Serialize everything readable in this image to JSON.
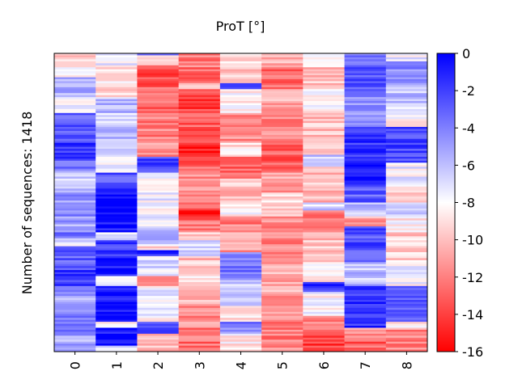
{
  "chart_data": {
    "type": "heatmap",
    "title": "ProT [°]",
    "ylabel": "Number of sequences: 1418",
    "xlabel": "",
    "x_categories": [
      "0",
      "1",
      "2",
      "3",
      "4",
      "5",
      "6",
      "7",
      "8"
    ],
    "n_rows": 1418,
    "colorbar": {
      "ticks": [
        "0",
        "-2",
        "-4",
        "-6",
        "-8",
        "-10",
        "-12",
        "-14",
        "-16"
      ],
      "range": [
        -16,
        0
      ],
      "colormap": [
        "#ff0000",
        "#ffffff",
        "#0000ff"
      ]
    },
    "columns": [
      {
        "category": "0",
        "bands": [
          [
            0.0,
            -10.0
          ],
          [
            0.04,
            -8.5
          ],
          [
            0.08,
            -5.5
          ],
          [
            0.15,
            -8.0
          ],
          [
            0.2,
            -3.0
          ],
          [
            0.3,
            -1.5
          ],
          [
            0.36,
            -4.0
          ],
          [
            0.4,
            -6.0
          ],
          [
            0.47,
            -4.5
          ],
          [
            0.55,
            -5.0
          ],
          [
            0.6,
            -3.5
          ],
          [
            0.62,
            -7.5
          ],
          [
            0.65,
            -3.0
          ],
          [
            0.73,
            -1.5
          ],
          [
            0.78,
            -5.0
          ],
          [
            0.88,
            -3.5
          ],
          [
            0.95,
            -5.5
          ]
        ]
      },
      {
        "category": "1",
        "bands": [
          [
            0.0,
            -7.5
          ],
          [
            0.04,
            -8.5
          ],
          [
            0.1,
            -9.5
          ],
          [
            0.15,
            -6.0
          ],
          [
            0.2,
            -7.0
          ],
          [
            0.25,
            -5.5
          ],
          [
            0.3,
            -6.5
          ],
          [
            0.35,
            -8.0
          ],
          [
            0.4,
            -2.5
          ],
          [
            0.42,
            -3.5
          ],
          [
            0.45,
            -0.5
          ],
          [
            0.6,
            -7.5
          ],
          [
            0.63,
            -2.0
          ],
          [
            0.68,
            -1.0
          ],
          [
            0.75,
            -7.0
          ],
          [
            0.78,
            -0.5
          ],
          [
            0.9,
            -8.0
          ],
          [
            0.92,
            -0.5
          ],
          [
            0.98,
            -7.5
          ]
        ]
      },
      {
        "category": "2",
        "bands": [
          [
            0.0,
            -4.5
          ],
          [
            0.01,
            -9.5
          ],
          [
            0.04,
            -13.5
          ],
          [
            0.1,
            -13.0
          ],
          [
            0.2,
            -12.0
          ],
          [
            0.3,
            -11.5
          ],
          [
            0.35,
            -2.0
          ],
          [
            0.4,
            -7.5
          ],
          [
            0.59,
            -4.5
          ],
          [
            0.64,
            -9.0
          ],
          [
            0.66,
            -1.5
          ],
          [
            0.68,
            -7.0
          ],
          [
            0.75,
            -12.0
          ],
          [
            0.78,
            -7.5
          ],
          [
            0.88,
            -9.0
          ],
          [
            0.9,
            -3.0
          ],
          [
            0.94,
            -10.0
          ]
        ]
      },
      {
        "category": "3",
        "bands": [
          [
            0.0,
            -12.0
          ],
          [
            0.05,
            -13.0
          ],
          [
            0.1,
            -10.0
          ],
          [
            0.12,
            -14.0
          ],
          [
            0.2,
            -13.0
          ],
          [
            0.3,
            -15.0
          ],
          [
            0.34,
            -13.0
          ],
          [
            0.4,
            -11.5
          ],
          [
            0.52,
            -15.0
          ],
          [
            0.56,
            -12.0
          ],
          [
            0.6,
            -9.5
          ],
          [
            0.63,
            -7.0
          ],
          [
            0.68,
            -10.0
          ],
          [
            0.72,
            -9.0
          ],
          [
            0.78,
            -10.5
          ],
          [
            0.85,
            -11.5
          ],
          [
            0.92,
            -12.5
          ]
        ]
      },
      {
        "category": "4",
        "bands": [
          [
            0.0,
            -9.5
          ],
          [
            0.05,
            -10.0
          ],
          [
            0.1,
            -3.0
          ],
          [
            0.12,
            -8.5
          ],
          [
            0.2,
            -11.5
          ],
          [
            0.3,
            -9.0
          ],
          [
            0.35,
            -13.0
          ],
          [
            0.42,
            -10.0
          ],
          [
            0.5,
            -8.5
          ],
          [
            0.55,
            -12.0
          ],
          [
            0.6,
            -11.0
          ],
          [
            0.67,
            -3.5
          ],
          [
            0.76,
            -6.0
          ],
          [
            0.85,
            -9.0
          ],
          [
            0.9,
            -4.0
          ],
          [
            0.94,
            -8.5
          ]
        ]
      },
      {
        "category": "5",
        "bands": [
          [
            0.0,
            -10.5
          ],
          [
            0.05,
            -12.5
          ],
          [
            0.12,
            -10.5
          ],
          [
            0.2,
            -11.5
          ],
          [
            0.3,
            -13.0
          ],
          [
            0.4,
            -11.0
          ],
          [
            0.47,
            -9.5
          ],
          [
            0.55,
            -11.5
          ],
          [
            0.6,
            -12.0
          ],
          [
            0.7,
            -10.5
          ],
          [
            0.8,
            -11.0
          ],
          [
            0.9,
            -12.0
          ]
        ]
      },
      {
        "category": "6",
        "bands": [
          [
            0.0,
            -9.0
          ],
          [
            0.05,
            -10.0
          ],
          [
            0.12,
            -8.5
          ],
          [
            0.2,
            -10.0
          ],
          [
            0.3,
            -9.0
          ],
          [
            0.34,
            -6.5
          ],
          [
            0.38,
            -10.0
          ],
          [
            0.5,
            -6.5
          ],
          [
            0.53,
            -12.5
          ],
          [
            0.6,
            -10.0
          ],
          [
            0.7,
            -8.5
          ],
          [
            0.77,
            -1.5
          ],
          [
            0.8,
            -8.0
          ],
          [
            0.88,
            -12.0
          ],
          [
            0.95,
            -14.0
          ]
        ]
      },
      {
        "category": "7",
        "bands": [
          [
            0.0,
            -3.0
          ],
          [
            0.06,
            -2.5
          ],
          [
            0.15,
            -5.0
          ],
          [
            0.25,
            -1.5
          ],
          [
            0.35,
            -1.0
          ],
          [
            0.45,
            -3.0
          ],
          [
            0.5,
            -6.0
          ],
          [
            0.55,
            -11.0
          ],
          [
            0.58,
            -2.5
          ],
          [
            0.7,
            -6.0
          ],
          [
            0.78,
            -1.5
          ],
          [
            0.92,
            -11.0
          ],
          [
            0.96,
            -13.0
          ]
        ]
      },
      {
        "category": "8",
        "bands": [
          [
            0.0,
            -7.5
          ],
          [
            0.03,
            -4.5
          ],
          [
            0.1,
            -6.0
          ],
          [
            0.18,
            -8.0
          ],
          [
            0.25,
            -2.0
          ],
          [
            0.37,
            -7.5
          ],
          [
            0.45,
            -9.0
          ],
          [
            0.5,
            -6.0
          ],
          [
            0.55,
            -8.5
          ],
          [
            0.6,
            -9.5
          ],
          [
            0.7,
            -8.0
          ],
          [
            0.78,
            -2.5
          ],
          [
            0.9,
            -9.0
          ],
          [
            0.93,
            -12.0
          ]
        ]
      }
    ]
  }
}
